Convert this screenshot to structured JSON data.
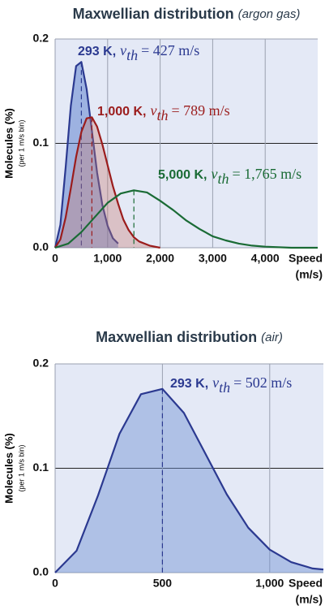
{
  "chart_data": [
    {
      "type": "line",
      "title": "Maxwellian distribution",
      "subtitle": "(argon gas)",
      "y_label": "Molecules (%)",
      "y_sublabel": "(per 1 m/s bin)",
      "x_label": "Speed",
      "x_sublabel": "(m/s)",
      "vth_symbol": "v",
      "vth_subscript": "th",
      "xlim": [
        0,
        5000
      ],
      "ylim": [
        0,
        0.2
      ],
      "xticks": [
        0,
        {
          "value": 1000,
          "label": "1,000"
        },
        {
          "value": 2000,
          "label": "2,000"
        },
        {
          "value": 3000,
          "label": "3,000"
        },
        {
          "value": 4000,
          "label": "4,000"
        }
      ],
      "yticks": [
        {
          "value": 0,
          "label": "0.0"
        },
        0.1,
        0.2
      ],
      "grid": true,
      "series": [
        {
          "name": "293 K,",
          "vth_text": "= 427 m/s",
          "color": "#2b3990",
          "fill": "rgba(70,110,200,0.45)",
          "x": [
            0,
            100,
            200,
            300,
            400,
            500,
            600,
            700,
            800,
            900,
            1000,
            1100,
            1200
          ],
          "values": [
            0,
            0.022,
            0.077,
            0.136,
            0.174,
            0.178,
            0.152,
            0.112,
            0.072,
            0.041,
            0.021,
            0.009,
            0.004
          ]
        },
        {
          "name": "1,000 K,",
          "vth_text": "= 789 m/s",
          "color": "#9b1c1c",
          "fill": "rgba(200,120,110,0.35)",
          "x": [
            0,
            100,
            200,
            300,
            400,
            500,
            600,
            700,
            800,
            900,
            1000,
            1100,
            1200,
            1300,
            1400,
            1500,
            1600,
            1800,
            2000
          ],
          "values": [
            0,
            0.008,
            0.029,
            0.057,
            0.087,
            0.111,
            0.124,
            0.125,
            0.116,
            0.099,
            0.079,
            0.059,
            0.042,
            0.027,
            0.017,
            0.01,
            0.006,
            0.002,
            0
          ]
        },
        {
          "name": "5,000 K,",
          "vth_text": "= 1,765 m/s",
          "color": "#1a6b35",
          "x": [
            0,
            250,
            500,
            750,
            1000,
            1250,
            1500,
            1750,
            2000,
            2250,
            2500,
            2750,
            3000,
            3250,
            3500,
            3750,
            4000,
            4500,
            5000
          ],
          "values": [
            0,
            0.004,
            0.015,
            0.029,
            0.043,
            0.052,
            0.055,
            0.053,
            0.045,
            0.036,
            0.026,
            0.018,
            0.011,
            0.007,
            0.004,
            0.002,
            0.001,
            0,
            0
          ]
        }
      ]
    },
    {
      "type": "line",
      "title": "Maxwellian distribution",
      "subtitle": "(air)",
      "y_label": "Molecules (%)",
      "y_sublabel": "(per 1 m/s bin)",
      "x_label": "Speed",
      "x_sublabel": "(m/s)",
      "vth_symbol": "v",
      "vth_subscript": "th",
      "xlim": [
        0,
        1250
      ],
      "ylim": [
        0,
        0.2
      ],
      "xticks": [
        0,
        500,
        {
          "value": 1000,
          "label": "1,000"
        }
      ],
      "yticks": [
        {
          "value": 0,
          "label": "0.0"
        },
        0.1,
        0.2
      ],
      "grid": true,
      "series": [
        {
          "name": "293 K,",
          "vth_text": "= 502 m/s",
          "color": "#2b3990",
          "fill": "rgba(110,145,210,0.45)",
          "x": [
            0,
            100,
            200,
            300,
            400,
            500,
            600,
            700,
            800,
            900,
            1000,
            1100,
            1200,
            1250
          ],
          "values": [
            0,
            0.021,
            0.074,
            0.133,
            0.171,
            0.176,
            0.153,
            0.114,
            0.075,
            0.043,
            0.022,
            0.01,
            0.004,
            0.003
          ]
        }
      ]
    }
  ]
}
